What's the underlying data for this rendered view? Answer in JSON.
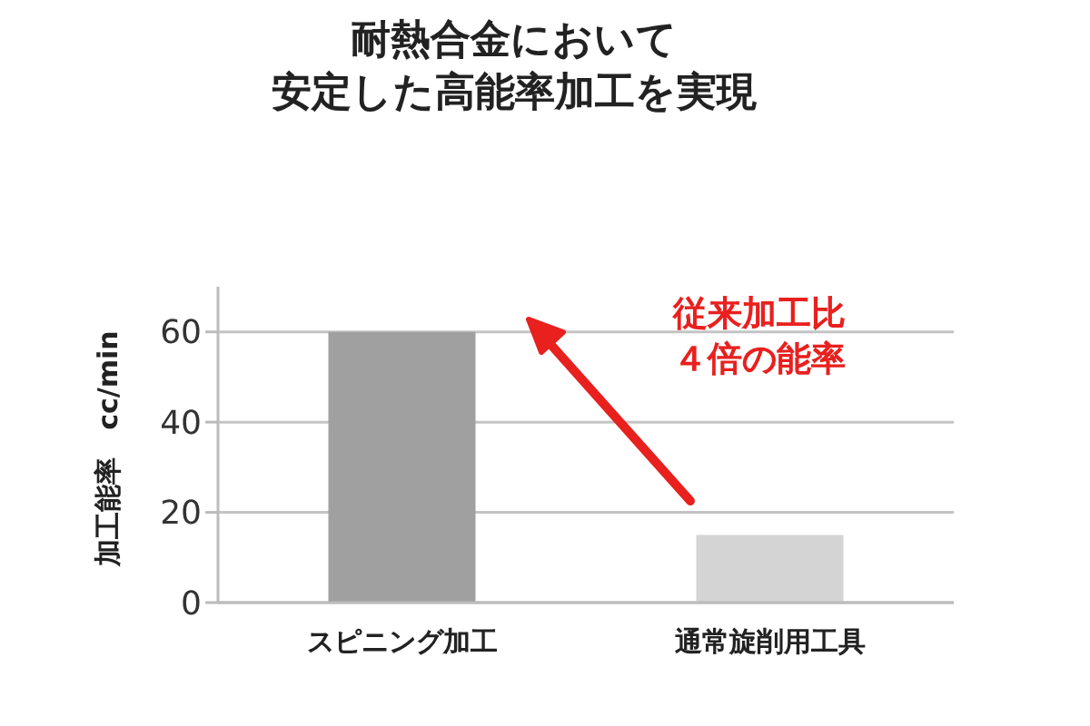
{
  "chart_data": {
    "type": "bar",
    "title": "耐熱合金において安定した高能率加工を実現",
    "ylabel": "加工能率　cc/min",
    "categories": [
      "スピニング加工",
      "通常旋削用工具"
    ],
    "values": [
      60,
      15
    ],
    "colors": [
      "#a0a0a0",
      "#d4d4d4"
    ],
    "ylim": [
      0,
      70
    ],
    "yticks": [
      0,
      20,
      40,
      60
    ],
    "grid": "y",
    "annotations": [
      "従来加工比４倍の能率"
    ]
  }
}
